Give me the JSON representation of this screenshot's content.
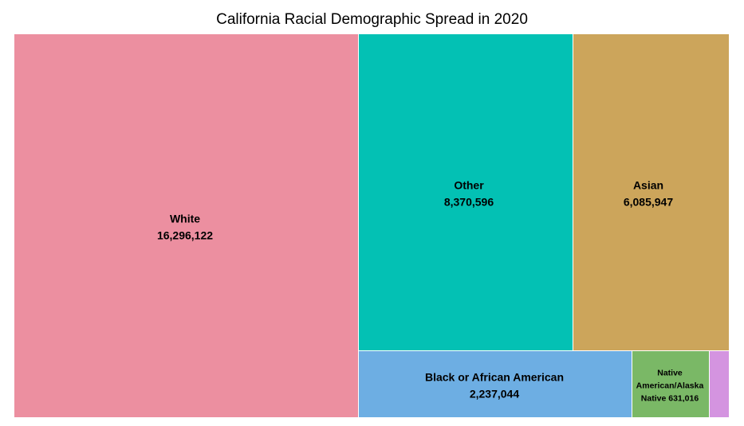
{
  "chart_data": {
    "type": "treemap",
    "title": "California Racial Demographic Spread in 2020",
    "items": [
      {
        "name": "White",
        "value": 16296122,
        "value_label": "16,296,122",
        "color": "#ec8fa0",
        "label_lines": [
          "White",
          "16,296,122"
        ]
      },
      {
        "name": "Other",
        "value": 8370596,
        "value_label": "8,370,596",
        "color": "#03c1b4",
        "label_lines": [
          "Other",
          "8,370,596"
        ]
      },
      {
        "name": "Asian",
        "value": 6085947,
        "value_label": "6,085,947",
        "color": "#cca55b",
        "label_lines": [
          "Asian",
          "6,085,947"
        ]
      },
      {
        "name": "Black or African American",
        "value": 2237044,
        "value_label": "2,237,044",
        "color": "#6daee3",
        "label_lines": [
          "Black or African American",
          "2,237,044"
        ]
      },
      {
        "name": "Native American/Alaska Native",
        "value": 631016,
        "value_label": "631,016",
        "color": "#7ab866",
        "label_lines": [
          "Native",
          "American/Alaska",
          "Native 631,016"
        ]
      },
      {
        "name": "",
        "value": null,
        "value_label": "",
        "color": "#d494e0",
        "label_lines": []
      }
    ]
  }
}
